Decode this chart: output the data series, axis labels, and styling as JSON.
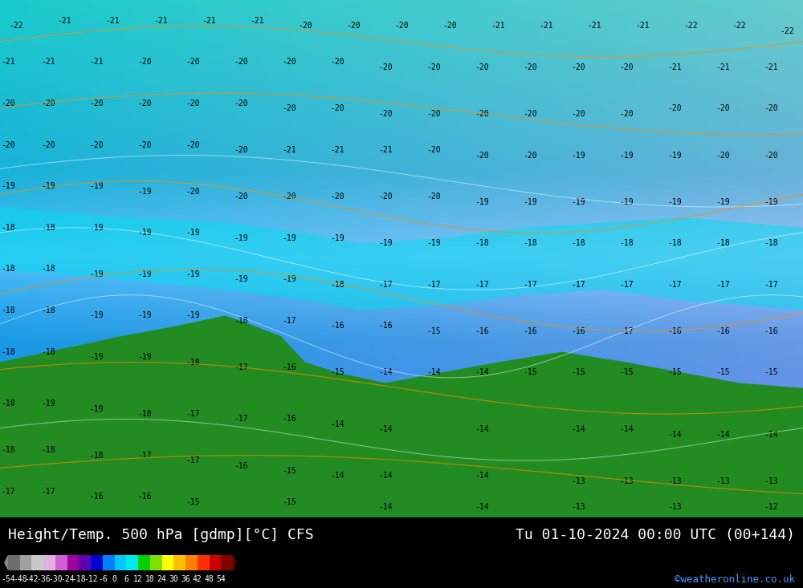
{
  "title_left": "Height/Temp. 500 hPa [gdmp][°C] CFS",
  "title_right": "Tu 01-10-2024 00:00 UTC (00+144)",
  "credit": "©weatheronline.co.uk",
  "colorbar_values": [
    -54,
    -48,
    -42,
    -36,
    -30,
    -24,
    -18,
    -12,
    -6,
    0,
    6,
    12,
    18,
    24,
    30,
    36,
    42,
    48,
    54
  ],
  "colorbar_colors": [
    "#6e6e6e",
    "#a0a0a0",
    "#c8c8c8",
    "#e0b0e0",
    "#d060d0",
    "#a000a0",
    "#6000b0",
    "#0000d0",
    "#0080ff",
    "#00c8ff",
    "#00e8e8",
    "#00d000",
    "#80e000",
    "#ffff00",
    "#ffc000",
    "#ff8000",
    "#ff3000",
    "#cc0000",
    "#800000"
  ],
  "bg_color": "#4da6ff",
  "fig_bg": "#000000",
  "footer_bg": "#000000",
  "footer_text_color": "#ffffff",
  "map_colors": {
    "deep_blue": "#3399ff",
    "mid_blue": "#66bbff",
    "light_cyan": "#99ddff",
    "cyan": "#00eeff",
    "green_dark": "#006600",
    "green_mid": "#228822",
    "green_light": "#44aa44"
  }
}
